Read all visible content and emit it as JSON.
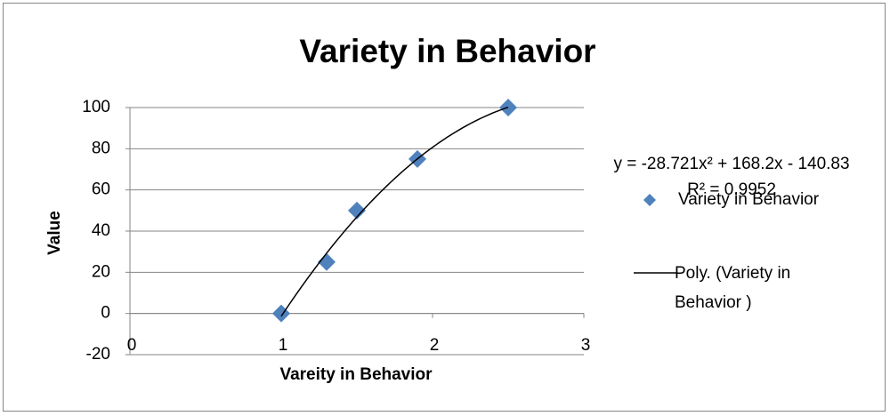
{
  "chart_data": {
    "type": "scatter",
    "title": "Variety in Behavior",
    "x_label": "Vareity in Behavior",
    "y_label": "Value",
    "series": [
      {
        "name": "Variety in Behavior",
        "color": "#4f81bd",
        "x": [
          1,
          1.3,
          1.5,
          1.9,
          2.5
        ],
        "values": [
          0,
          25,
          50,
          75,
          100
        ]
      }
    ],
    "trendline": {
      "name": "Poly. (Variety in Behavior )",
      "color": "#000000",
      "coefficients": [
        -28.721,
        168.2,
        -140.83
      ],
      "equation": "y = -28.721x² + 168.2x - 140.83",
      "r_squared": "R² = 0.9952"
    },
    "xlim": [
      0,
      3
    ],
    "xticks": [
      0,
      1,
      2,
      3
    ],
    "ylim": [
      -20,
      100
    ],
    "yticks": [
      -20,
      0,
      20,
      40,
      60,
      80,
      100
    ],
    "grid": true,
    "legend": "right"
  }
}
